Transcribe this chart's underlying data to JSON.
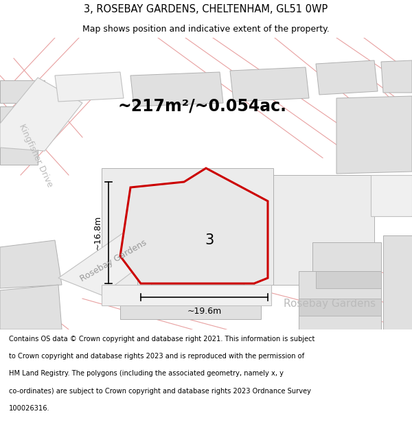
{
  "title": "3, ROSEBAY GARDENS, CHELTENHAM, GL51 0WP",
  "subtitle": "Map shows position and indicative extent of the property.",
  "area_text": "~217m²/~0.054ac.",
  "label_3": "3",
  "dim_height": "~16.8m",
  "dim_width": "~19.6m",
  "road_label_diagonal": "Rosebay Gardens",
  "road_label_horizontal": "Rosebay Gardens",
  "road_label_kingfisher": "Kingfisher Drive",
  "footer_lines": [
    "Contains OS data © Crown copyright and database right 2021. This information is subject",
    "to Crown copyright and database rights 2023 and is reproduced with the permission of",
    "HM Land Registry. The polygons (including the associated geometry, namely x, y",
    "co-ordinates) are subject to Crown copyright and database rights 2023 Ordnance Survey",
    "100026316."
  ],
  "red_color": "#cc0000",
  "light_gray": "#e0e0e0",
  "mid_gray": "#d0d0d0",
  "plot_fill": "#e8e8e8",
  "road_fill": "#f0f0f0",
  "pink_line": "#e8a8a8",
  "bg_white": "#ffffff"
}
